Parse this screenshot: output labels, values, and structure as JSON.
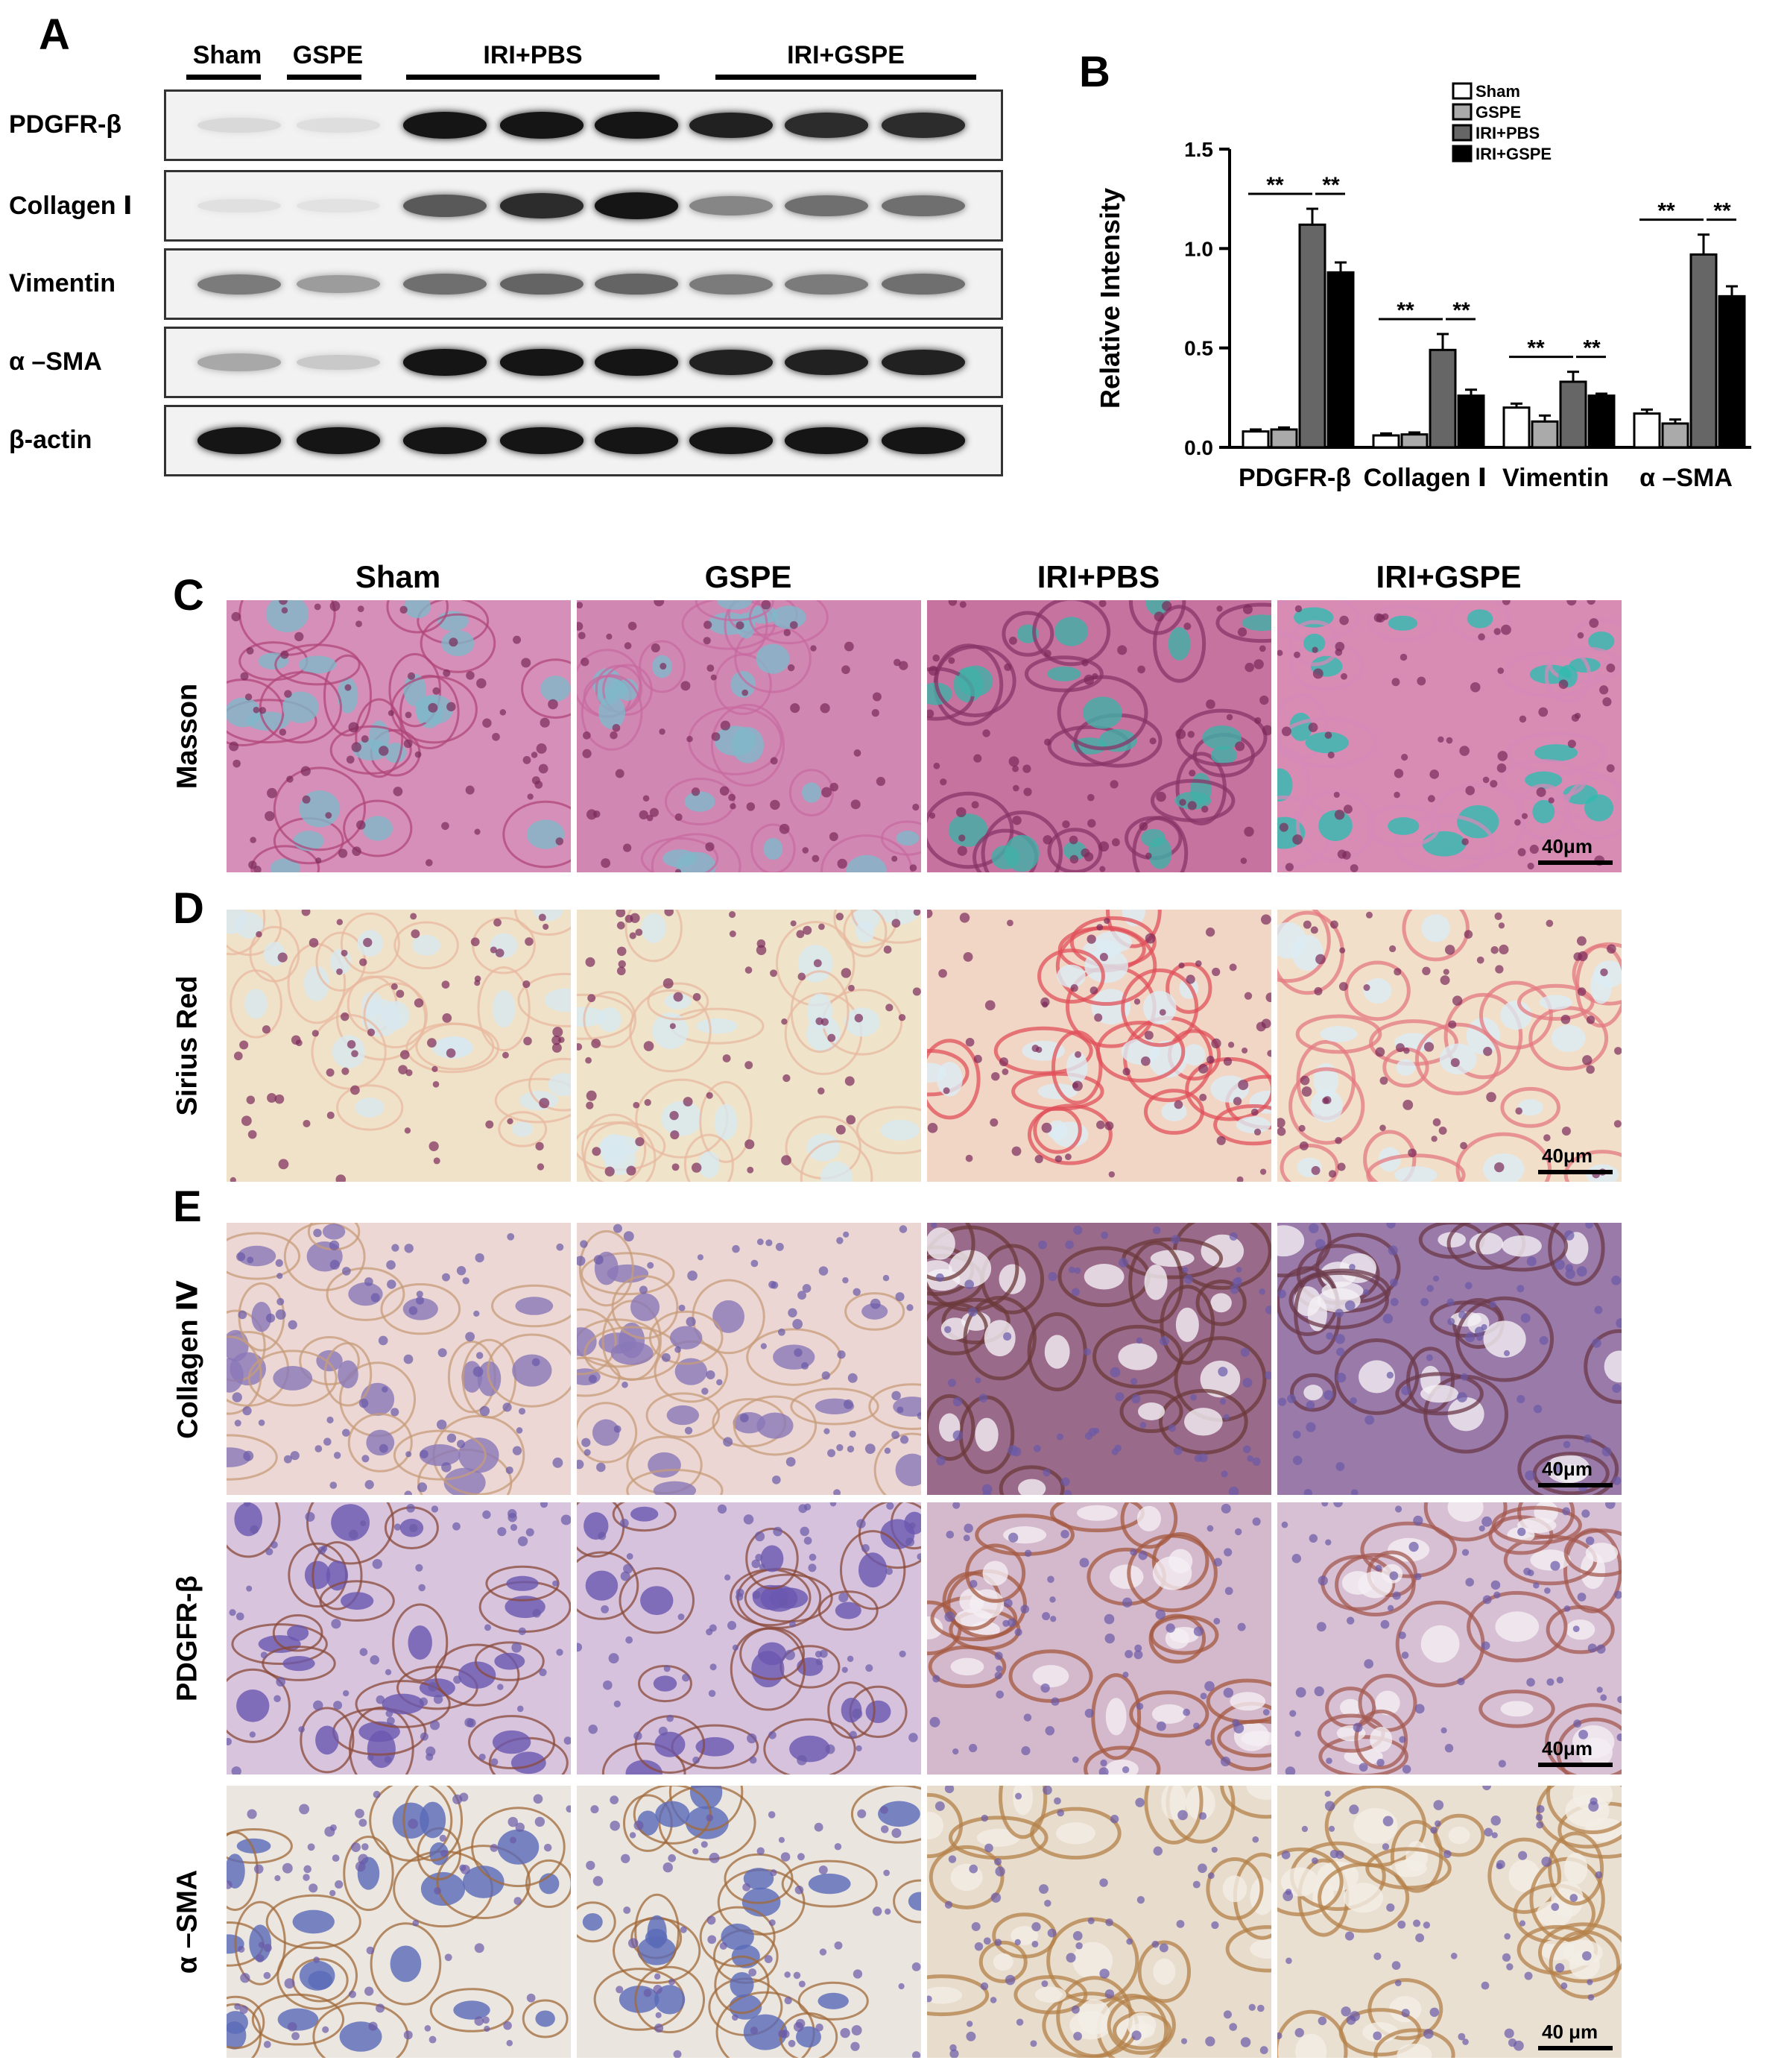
{
  "panels": {
    "A": "A",
    "B": "B",
    "C": "C",
    "D": "D",
    "E": "E"
  },
  "blot": {
    "groups": [
      "Sham",
      "GSPE",
      "IRI+PBS",
      "IRI+GSPE"
    ],
    "rows": [
      "PDGFR-β",
      "Collagen Ⅰ",
      "Vimentin",
      "α –SMA",
      "β-actin"
    ],
    "intensities": [
      [
        0.08,
        0.06,
        0.95,
        0.95,
        0.95,
        0.9,
        0.85,
        0.85
      ],
      [
        0.05,
        0.04,
        0.65,
        0.85,
        0.95,
        0.45,
        0.55,
        0.55
      ],
      [
        0.5,
        0.35,
        0.55,
        0.6,
        0.6,
        0.5,
        0.5,
        0.55
      ],
      [
        0.3,
        0.15,
        0.95,
        0.95,
        0.95,
        0.9,
        0.9,
        0.9
      ],
      [
        0.95,
        0.95,
        0.95,
        0.95,
        0.95,
        0.95,
        0.95,
        0.95
      ]
    ]
  },
  "chart_data": {
    "type": "bar",
    "ylabel": "Relative Intensity",
    "ylim": [
      0,
      1.5
    ],
    "yticks": [
      "0.0",
      "0.5",
      "1.0",
      "1.5"
    ],
    "categories": [
      "PDGFR-β",
      "Collagen Ⅰ",
      "Vimentin",
      "α –SMA"
    ],
    "series": [
      {
        "name": "Sham",
        "values": [
          0.08,
          0.06,
          0.2,
          0.17
        ],
        "errors": [
          0.01,
          0.01,
          0.02,
          0.02
        ],
        "color": "#ffffff"
      },
      {
        "name": "GSPE",
        "values": [
          0.09,
          0.065,
          0.13,
          0.12
        ],
        "errors": [
          0.01,
          0.01,
          0.03,
          0.02
        ],
        "color": "#aaaaaa"
      },
      {
        "name": "IRI+PBS",
        "values": [
          1.12,
          0.49,
          0.33,
          0.97
        ],
        "errors": [
          0.08,
          0.08,
          0.05,
          0.1
        ],
        "color": "#666666"
      },
      {
        "name": "IRI+GSPE",
        "values": [
          0.88,
          0.26,
          0.26,
          0.76
        ],
        "errors": [
          0.05,
          0.03,
          0.01,
          0.05
        ],
        "color": "#000000"
      }
    ],
    "significance": "**",
    "legend_position": "top-right"
  },
  "histology": {
    "columns": [
      "Sham",
      "GSPE",
      "IRI+PBS",
      "IRI+GSPE"
    ],
    "rows": [
      {
        "label": "Masson",
        "scale": "40μm",
        "palette": [
          "#b0457a",
          "#c86aa0",
          "#8a3468",
          "#d48ab8"
        ],
        "bg": [
          "#d58fb8",
          "#d087b2",
          "#c7739f",
          "#d88cb4"
        ],
        "accent": [
          "#7fb8c9",
          "#7fb8c9",
          "#3fb0a8",
          "#2fbcb0"
        ]
      },
      {
        "label": "Sirius Red",
        "scale": "40μm",
        "palette": [
          "#e8b8a0",
          "#e8b8a0",
          "#e0505a",
          "#e47a80"
        ],
        "bg": [
          "#f0e2c8",
          "#efe3ca",
          "#f1d6c6",
          "#f1dfca"
        ],
        "accent": [
          "#d8e8f0",
          "#d8e8f0",
          "#dcecf4",
          "#dcecf4"
        ]
      },
      {
        "label": "Collagen Ⅳ",
        "scale": "40μm",
        "palette": [
          "#c79c7a",
          "#c79c7a",
          "#6b3a3a",
          "#6b3a4a"
        ],
        "bg": [
          "#ecd7d4",
          "#ecd6d3",
          "#9a6a8a",
          "#9a7aa8"
        ],
        "accent": [
          "#8a78b8",
          "#8a78b8",
          "#f4f0f4",
          "#f4f0f4"
        ]
      },
      {
        "label": "PDGFR-β",
        "scale": "40μm",
        "palette": [
          "#8a4a3a",
          "#8a4a3a",
          "#a45a40",
          "#a45a50"
        ],
        "bg": [
          "#d8c4dc",
          "#d6c2dc",
          "#d4b8cc",
          "#d8c0d4"
        ],
        "accent": [
          "#6a58b0",
          "#6a58b0",
          "#f4eef2",
          "#f4eef2"
        ]
      },
      {
        "label": "α –SMA",
        "scale": "40 μm",
        "palette": [
          "#a06a3a",
          "#a06a3a",
          "#b4824a",
          "#b4824a"
        ],
        "bg": [
          "#ece6e0",
          "#ebe5df",
          "#e8dccc",
          "#eae0d2"
        ],
        "accent": [
          "#5a6ab8",
          "#5a6ab8",
          "#f2eee6",
          "#f2eee6"
        ]
      }
    ]
  }
}
